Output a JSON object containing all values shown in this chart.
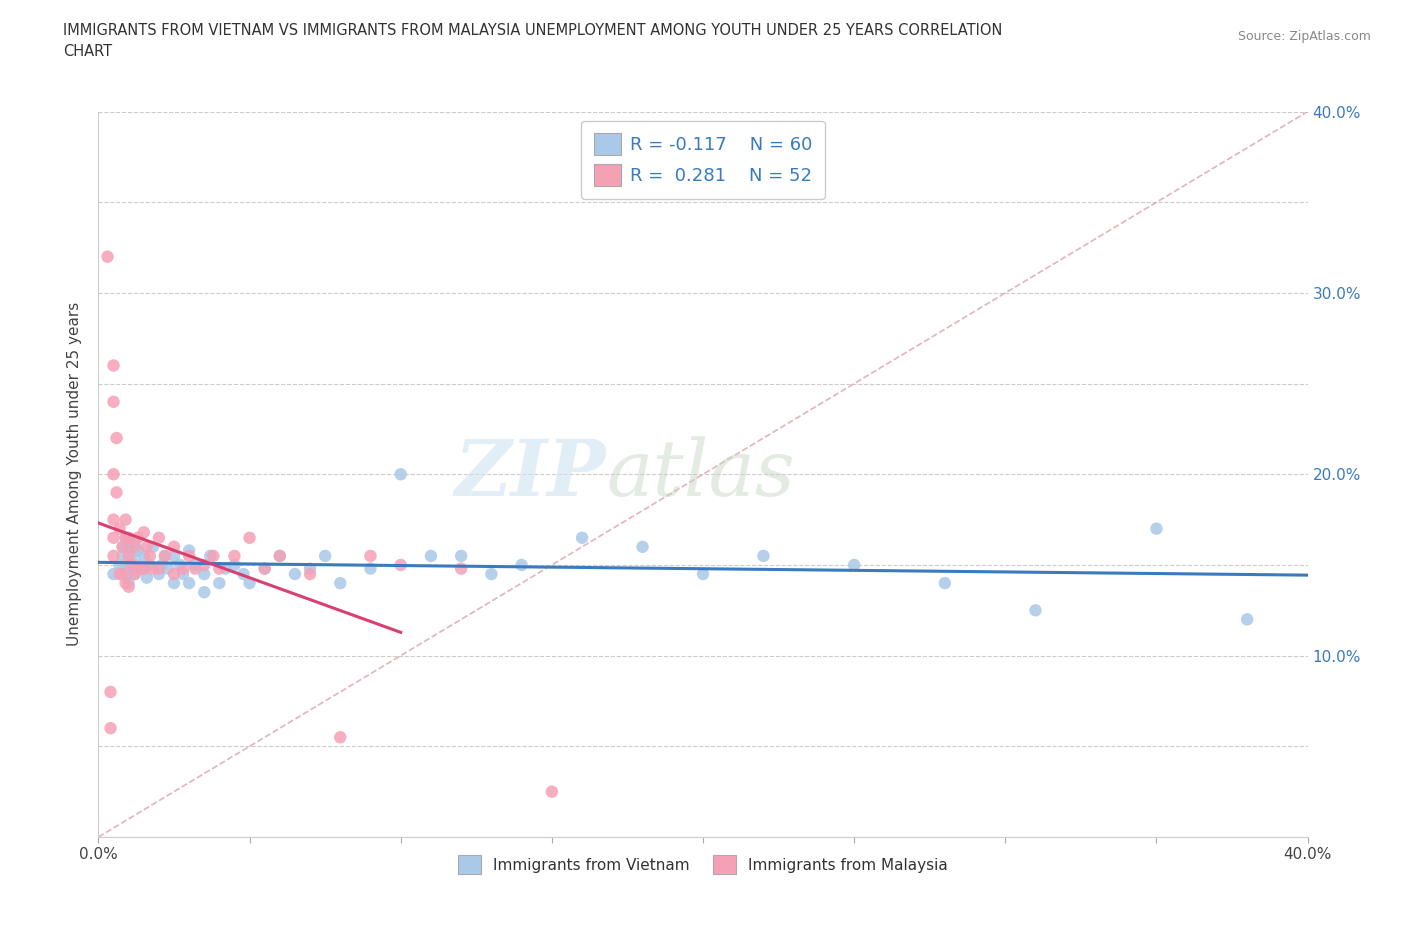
{
  "title": "IMMIGRANTS FROM VIETNAM VS IMMIGRANTS FROM MALAYSIA UNEMPLOYMENT AMONG YOUTH UNDER 25 YEARS CORRELATION\nCHART",
  "source_text": "Source: ZipAtlas.com",
  "ylabel": "Unemployment Among Youth under 25 years",
  "xlabel": "",
  "xlim": [
    0.0,
    0.4
  ],
  "ylim": [
    0.0,
    0.4
  ],
  "x_ticks": [
    0.0,
    0.05,
    0.1,
    0.15,
    0.2,
    0.25,
    0.3,
    0.35,
    0.4
  ],
  "y_ticks": [
    0.0,
    0.05,
    0.1,
    0.15,
    0.2,
    0.25,
    0.3,
    0.35,
    0.4
  ],
  "x_tick_labels": [
    "0.0%",
    "",
    "",
    "",
    "",
    "",
    "",
    "",
    "40.0%"
  ],
  "y_tick_labels": [
    "",
    "",
    "10.0%",
    "",
    "20.0%",
    "",
    "30.0%",
    "",
    "40.0%"
  ],
  "r_vietnam": -0.117,
  "n_vietnam": 60,
  "r_malaysia": 0.281,
  "n_malaysia": 52,
  "vietnam_color": "#aac8e8",
  "malaysia_color": "#f5a0b5",
  "vietnam_trend_color": "#3a7bbf",
  "malaysia_trend_color": "#d94070",
  "diagonal_color": "#e0a0a8",
  "watermark_zip": "ZIP",
  "watermark_atlas": "atlas",
  "background_color": "#ffffff",
  "vietnam_scatter_x": [
    0.005,
    0.007,
    0.008,
    0.008,
    0.009,
    0.009,
    0.01,
    0.01,
    0.01,
    0.01,
    0.011,
    0.012,
    0.012,
    0.013,
    0.013,
    0.015,
    0.015,
    0.016,
    0.017,
    0.018,
    0.02,
    0.021,
    0.022,
    0.023,
    0.025,
    0.025,
    0.027,
    0.028,
    0.03,
    0.03,
    0.032,
    0.035,
    0.035,
    0.037,
    0.04,
    0.042,
    0.045,
    0.048,
    0.05,
    0.055,
    0.06,
    0.065,
    0.07,
    0.075,
    0.08,
    0.09,
    0.1,
    0.11,
    0.12,
    0.13,
    0.14,
    0.16,
    0.18,
    0.2,
    0.22,
    0.25,
    0.28,
    0.31,
    0.35,
    0.38
  ],
  "vietnam_scatter_y": [
    0.145,
    0.15,
    0.155,
    0.16,
    0.148,
    0.165,
    0.14,
    0.145,
    0.15,
    0.16,
    0.155,
    0.145,
    0.162,
    0.15,
    0.158,
    0.148,
    0.155,
    0.143,
    0.15,
    0.16,
    0.145,
    0.15,
    0.155,
    0.148,
    0.14,
    0.155,
    0.15,
    0.145,
    0.14,
    0.158,
    0.15,
    0.135,
    0.145,
    0.155,
    0.14,
    0.148,
    0.15,
    0.145,
    0.14,
    0.148,
    0.155,
    0.145,
    0.148,
    0.155,
    0.14,
    0.148,
    0.2,
    0.155,
    0.155,
    0.145,
    0.15,
    0.165,
    0.16,
    0.145,
    0.155,
    0.15,
    0.14,
    0.125,
    0.17,
    0.12
  ],
  "malaysia_scatter_x": [
    0.003,
    0.004,
    0.004,
    0.005,
    0.005,
    0.005,
    0.005,
    0.005,
    0.005,
    0.006,
    0.006,
    0.007,
    0.007,
    0.008,
    0.008,
    0.009,
    0.009,
    0.009,
    0.01,
    0.01,
    0.01,
    0.011,
    0.012,
    0.012,
    0.013,
    0.014,
    0.015,
    0.015,
    0.016,
    0.017,
    0.018,
    0.02,
    0.02,
    0.022,
    0.025,
    0.025,
    0.028,
    0.03,
    0.032,
    0.035,
    0.038,
    0.04,
    0.045,
    0.05,
    0.055,
    0.06,
    0.07,
    0.08,
    0.09,
    0.1,
    0.12,
    0.15
  ],
  "malaysia_scatter_y": [
    0.32,
    0.08,
    0.06,
    0.26,
    0.24,
    0.2,
    0.175,
    0.165,
    0.155,
    0.22,
    0.19,
    0.17,
    0.145,
    0.16,
    0.145,
    0.175,
    0.165,
    0.14,
    0.165,
    0.155,
    0.138,
    0.15,
    0.16,
    0.145,
    0.165,
    0.148,
    0.168,
    0.148,
    0.16,
    0.155,
    0.148,
    0.165,
    0.148,
    0.155,
    0.16,
    0.145,
    0.148,
    0.155,
    0.148,
    0.15,
    0.155,
    0.148,
    0.155,
    0.165,
    0.148,
    0.155,
    0.145,
    0.055,
    0.155,
    0.15,
    0.148,
    0.025
  ]
}
